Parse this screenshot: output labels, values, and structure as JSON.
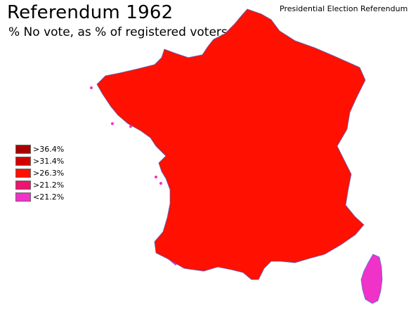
{
  "header": {
    "title": "Referendum 1962",
    "subtitle": "% No vote, as % of registered voters",
    "note": "Presidential Election Referendum"
  },
  "legend": {
    "items": [
      {
        "label": ">36.4%",
        "color": "#a80000"
      },
      {
        "label": ">31.4%",
        "color": "#d40000"
      },
      {
        "label": ">26.3%",
        "color": "#ff1000"
      },
      {
        "label": ">21.2%",
        "color": "#ee1470"
      },
      {
        "label": "<21.2%",
        "color": "#f032c8"
      }
    ]
  },
  "colors": {
    "coast_outline": "#3a6fd8"
  }
}
